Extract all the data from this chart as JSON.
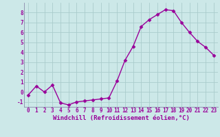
{
  "x": [
    0,
    1,
    2,
    3,
    4,
    5,
    6,
    7,
    8,
    9,
    10,
    11,
    12,
    13,
    14,
    15,
    16,
    17,
    18,
    19,
    20,
    21,
    22,
    23
  ],
  "y": [
    -0.3,
    0.6,
    0.0,
    0.7,
    -1.1,
    -1.3,
    -1.0,
    -0.9,
    -0.8,
    -0.7,
    -0.6,
    1.1,
    3.2,
    4.6,
    6.6,
    7.3,
    7.8,
    8.3,
    8.2,
    7.0,
    6.0,
    5.1,
    4.5,
    3.7
  ],
  "line_color": "#990099",
  "marker": "D",
  "marker_size": 2.5,
  "linewidth": 1.0,
  "background_color": "#cce8e8",
  "grid_color": "#aacccc",
  "xlabel": "Windchill (Refroidissement éolien,°C)",
  "xlim": [
    -0.5,
    23.5
  ],
  "ylim": [
    -1.5,
    9.0
  ],
  "yticks": [
    -1,
    0,
    1,
    2,
    3,
    4,
    5,
    6,
    7,
    8
  ],
  "xticks": [
    0,
    1,
    2,
    3,
    4,
    5,
    6,
    7,
    8,
    9,
    10,
    11,
    12,
    13,
    14,
    15,
    16,
    17,
    18,
    19,
    20,
    21,
    22,
    23
  ],
  "tick_color": "#990099",
  "tick_label_size": 5.5,
  "xlabel_size": 6.5,
  "label_color": "#990099",
  "spine_color": "#8888aa"
}
